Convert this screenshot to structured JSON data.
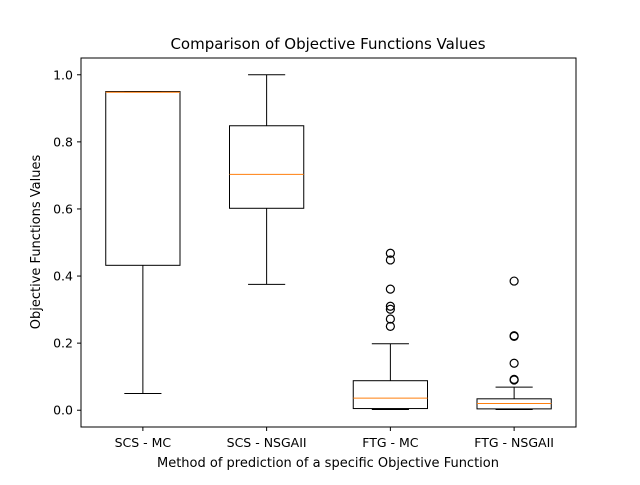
{
  "chart_data": {
    "type": "box",
    "title": "Comparison of Objective Functions Values",
    "xlabel": "Method of prediction of a specific Objective Function",
    "ylabel": "Objective Functions Values",
    "ylim": [
      -0.05,
      1.05
    ],
    "yticks": [
      "0.0",
      "0.2",
      "0.4",
      "0.6",
      "0.8",
      "1.0"
    ],
    "categories": [
      "SCS - MC",
      "SCS - NSGAII",
      "FTG - MC",
      "FTG - NSGAII"
    ],
    "boxes": [
      {
        "whisker_low": 0.05,
        "q1": 0.432,
        "median": 0.948,
        "q3": 0.95,
        "whisker_high": 0.95,
        "outliers": []
      },
      {
        "whisker_low": 0.375,
        "q1": 0.602,
        "median": 0.703,
        "q3": 0.848,
        "whisker_high": 1.0,
        "outliers": []
      },
      {
        "whisker_low": 0.002,
        "q1": 0.005,
        "median": 0.036,
        "q3": 0.088,
        "whisker_high": 0.198,
        "outliers": [
          0.25,
          0.272,
          0.301,
          0.31,
          0.361,
          0.448,
          0.468
        ]
      },
      {
        "whisker_low": 0.002,
        "q1": 0.004,
        "median": 0.02,
        "q3": 0.034,
        "whisker_high": 0.069,
        "outliers": [
          0.09,
          0.092,
          0.14,
          0.22,
          0.222,
          0.385
        ]
      }
    ],
    "colors": {
      "box": "#000000",
      "median": "#ff7f0e",
      "outlier": "#000000"
    },
    "grid": false
  }
}
